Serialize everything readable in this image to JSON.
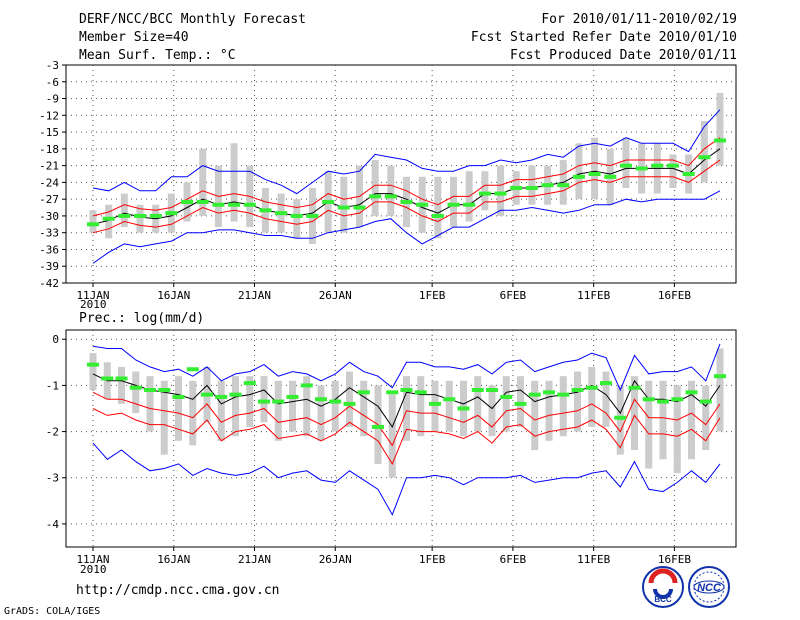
{
  "header": {
    "title": "DERF/NCC/BCC Monthly Forecast",
    "member_size": "Member Size=40",
    "variable": "Mean Surf. Temp.: °C",
    "forecast_period": "For 2010/01/11-2010/02/19",
    "started_refer": "Fcst Started Refer Date 2010/01/10",
    "produced": "Fcst Produced Date 2010/01/11"
  },
  "footer": {
    "url": "http://cmdp.ncc.cma.gov.cn",
    "grads": "GrADS: COLA/IGES",
    "logo_bcc_text": "BCC",
    "logo_ncc_text": "NCC"
  },
  "chart_data": [
    {
      "type": "line",
      "title": "Mean Surf. Temp.: °C",
      "x_ticks": [
        "11JAN",
        "16JAN",
        "21JAN",
        "26JAN",
        "1FEB",
        "6FEB",
        "11FEB",
        "16FEB"
      ],
      "x_tick_days": [
        0,
        5,
        10,
        15,
        21,
        26,
        31,
        36
      ],
      "x_year_label": "2010",
      "y_ticks": [
        -3,
        -6,
        -9,
        -12,
        -15,
        -18,
        -21,
        -24,
        -27,
        -30,
        -33,
        -36,
        -39,
        -42
      ],
      "ylim": [
        -42,
        -3
      ],
      "grid": true,
      "series": [
        {
          "name": "ensemble mean",
          "color": "#000000",
          "values": [
            -31.5,
            -30.8,
            -29.5,
            -30.2,
            -30.5,
            -30.0,
            -28.5,
            -27.0,
            -28.0,
            -27.5,
            -28.0,
            -29.0,
            -29.5,
            -30.0,
            -29.5,
            -27.5,
            -28.5,
            -28.0,
            -26.0,
            -26.0,
            -27.0,
            -28.5,
            -29.5,
            -28.0,
            -28.0,
            -26.0,
            -26.0,
            -25.0,
            -25.0,
            -24.5,
            -24.0,
            -22.5,
            -22.0,
            -22.5,
            -21.5,
            -21.5,
            -21.5,
            -21.5,
            -22.5,
            -20.0,
            -18.0
          ]
        },
        {
          "name": "upper spread",
          "color": "#ff0000",
          "values": [
            -30.0,
            -29.3,
            -28.0,
            -28.7,
            -29.0,
            -28.5,
            -27.0,
            -25.5,
            -26.5,
            -26.0,
            -26.5,
            -27.5,
            -28.0,
            -28.5,
            -28.0,
            -26.0,
            -27.0,
            -26.5,
            -24.5,
            -24.5,
            -25.5,
            -27.0,
            -28.0,
            -26.5,
            -26.5,
            -24.5,
            -24.5,
            -23.5,
            -23.5,
            -23.0,
            -22.5,
            -21.0,
            -20.5,
            -21.0,
            -20.0,
            -20.0,
            -20.0,
            -20.0,
            -21.0,
            -18.0,
            -16.0
          ]
        },
        {
          "name": "lower spread",
          "color": "#ff0000",
          "values": [
            -33.0,
            -32.3,
            -31.0,
            -31.7,
            -32.0,
            -31.5,
            -30.0,
            -28.5,
            -29.5,
            -29.0,
            -29.5,
            -30.5,
            -31.0,
            -31.5,
            -31.0,
            -29.0,
            -30.0,
            -29.5,
            -27.5,
            -27.5,
            -28.5,
            -30.0,
            -31.0,
            -29.5,
            -29.5,
            -27.5,
            -27.5,
            -26.5,
            -26.5,
            -26.0,
            -25.5,
            -24.0,
            -23.5,
            -24.0,
            -23.0,
            -23.0,
            -23.0,
            -23.0,
            -24.0,
            -22.0,
            -20.0
          ]
        },
        {
          "name": "ensemble max",
          "color": "#0000ff",
          "values": [
            -25.0,
            -25.5,
            -24.0,
            -25.5,
            -25.5,
            -23.0,
            -23.0,
            -21.0,
            -22.0,
            -22.0,
            -22.0,
            -23.5,
            -24.5,
            -26.0,
            -24.0,
            -22.0,
            -22.5,
            -22.0,
            -19.0,
            -19.5,
            -20.0,
            -21.5,
            -22.0,
            -22.0,
            -21.0,
            -21.0,
            -20.0,
            -20.5,
            -20.0,
            -19.0,
            -19.5,
            -17.5,
            -17.0,
            -17.5,
            -16.0,
            -17.0,
            -17.0,
            -17.0,
            -18.5,
            -14.0,
            -11.0
          ]
        },
        {
          "name": "ensemble min",
          "color": "#0000ff",
          "values": [
            -38.5,
            -36.5,
            -35.0,
            -35.5,
            -35.0,
            -34.5,
            -33.0,
            -33.0,
            -32.5,
            -32.5,
            -33.0,
            -33.5,
            -33.5,
            -34.0,
            -34.0,
            -33.0,
            -32.5,
            -32.0,
            -31.0,
            -30.5,
            -33.0,
            -35.0,
            -33.5,
            -32.0,
            -32.0,
            -30.5,
            -29.0,
            -29.0,
            -28.5,
            -29.0,
            -29.5,
            -29.0,
            -28.0,
            -28.0,
            -27.0,
            -27.5,
            -27.0,
            -27.0,
            -27.0,
            -27.0,
            -25.5
          ]
        },
        {
          "name": "observed / control",
          "color": "#33ee33",
          "values": [
            -31.5,
            -30.5,
            -30.0,
            -30.0,
            -30.0,
            -29.5,
            -27.5,
            -27.5,
            -28.0,
            -28.0,
            -28.0,
            -29.0,
            -29.5,
            -30.0,
            -30.0,
            -27.5,
            -28.5,
            -28.5,
            -26.5,
            -26.5,
            -27.5,
            -28.0,
            -30.0,
            -28.0,
            -28.0,
            -26.0,
            -26.0,
            -25.0,
            -25.0,
            -24.5,
            -24.5,
            -23.0,
            -22.5,
            -23.0,
            -21.0,
            -21.5,
            -21.0,
            -21.0,
            -22.5,
            -19.5,
            -16.5
          ]
        },
        {
          "name": "member range boxes",
          "color": "#cccccc",
          "ranges": [
            [
              -33,
              -29
            ],
            [
              -34,
              -28
            ],
            [
              -32,
              -26
            ],
            [
              -33,
              -28
            ],
            [
              -33,
              -28
            ],
            [
              -33,
              -26
            ],
            [
              -31,
              -24
            ],
            [
              -30,
              -18
            ],
            [
              -32,
              -21
            ],
            [
              -31,
              -17
            ],
            [
              -32,
              -21
            ],
            [
              -33,
              -25
            ],
            [
              -33,
              -26
            ],
            [
              -34,
              -27
            ],
            [
              -35,
              -25
            ],
            [
              -33,
              -22
            ],
            [
              -33,
              -23
            ],
            [
              -32,
              -21
            ],
            [
              -30,
              -20
            ],
            [
              -30,
              -21
            ],
            [
              -32,
              -23
            ],
            [
              -33,
              -23
            ],
            [
              -34,
              -23
            ],
            [
              -32,
              -23
            ],
            [
              -31,
              -22
            ],
            [
              -29,
              -22
            ],
            [
              -30,
              -21
            ],
            [
              -28,
              -22
            ],
            [
              -28,
              -21
            ],
            [
              -28,
              -21
            ],
            [
              -28,
              -20
            ],
            [
              -27,
              -17
            ],
            [
              -27,
              -16
            ],
            [
              -28,
              -18
            ],
            [
              -25,
              -16
            ],
            [
              -26,
              -17
            ],
            [
              -26,
              -17
            ],
            [
              -25,
              -19
            ],
            [
              -26,
              -19
            ],
            [
              -24,
              -13
            ],
            [
              -21,
              -8
            ]
          ]
        }
      ]
    },
    {
      "type": "line",
      "title": "Prec.: log(mm/d)",
      "x_ticks": [
        "11JAN",
        "16JAN",
        "21JAN",
        "26JAN",
        "1FEB",
        "6FEB",
        "11FEB",
        "16FEB"
      ],
      "x_tick_days": [
        0,
        5,
        10,
        15,
        21,
        26,
        31,
        36
      ],
      "x_year_label": "2010",
      "y_ticks": [
        0,
        -1,
        -2,
        -3,
        -4
      ],
      "ylim": [
        -4.5,
        0.2
      ],
      "grid": true,
      "series": [
        {
          "name": "ensemble mean",
          "color": "#000000",
          "values": [
            -0.75,
            -0.9,
            -0.9,
            -1.0,
            -1.1,
            -1.15,
            -1.2,
            -1.3,
            -1.0,
            -1.4,
            -1.25,
            -1.2,
            -1.1,
            -1.4,
            -1.35,
            -1.3,
            -1.45,
            -1.3,
            -1.05,
            -1.25,
            -1.45,
            -1.9,
            -1.15,
            -1.2,
            -1.2,
            -1.3,
            -1.4,
            -1.25,
            -1.5,
            -1.15,
            -1.1,
            -1.35,
            -1.25,
            -1.2,
            -1.15,
            -1.0,
            -1.2,
            -1.6,
            -0.9,
            -1.3,
            -1.3,
            -1.35,
            -1.2,
            -1.45,
            -1.0
          ]
        },
        {
          "name": "upper spread",
          "color": "#ff0000",
          "values": [
            -1.15,
            -1.3,
            -1.3,
            -1.4,
            -1.5,
            -1.55,
            -1.6,
            -1.7,
            -1.4,
            -1.8,
            -1.65,
            -1.6,
            -1.5,
            -1.8,
            -1.75,
            -1.7,
            -1.85,
            -1.7,
            -1.45,
            -1.65,
            -1.85,
            -2.3,
            -1.55,
            -1.6,
            -1.6,
            -1.7,
            -1.8,
            -1.65,
            -1.9,
            -1.55,
            -1.5,
            -1.75,
            -1.65,
            -1.6,
            -1.55,
            -1.4,
            -1.6,
            -2.0,
            -1.3,
            -1.7,
            -1.7,
            -1.75,
            -1.6,
            -1.85,
            -1.4
          ]
        },
        {
          "name": "lower spread",
          "color": "#ff0000",
          "values": [
            -1.5,
            -1.65,
            -1.6,
            -1.75,
            -1.85,
            -1.85,
            -1.95,
            -2.05,
            -1.75,
            -2.2,
            -2.0,
            -1.95,
            -1.85,
            -2.15,
            -2.1,
            -2.05,
            -2.2,
            -2.05,
            -1.8,
            -2.0,
            -2.2,
            -2.7,
            -1.95,
            -2.0,
            -2.0,
            -2.05,
            -2.15,
            -2.0,
            -2.25,
            -1.9,
            -1.85,
            -2.1,
            -2.0,
            -1.95,
            -1.9,
            -1.75,
            -1.95,
            -2.35,
            -1.65,
            -2.05,
            -2.05,
            -2.1,
            -1.95,
            -2.2,
            -1.7
          ]
        },
        {
          "name": "ensemble max",
          "color": "#0000ff",
          "values": [
            -0.15,
            -0.2,
            -0.2,
            -0.45,
            -0.6,
            -0.7,
            -0.65,
            -0.8,
            -0.6,
            -0.9,
            -0.75,
            -0.7,
            -0.55,
            -0.8,
            -0.7,
            -0.75,
            -0.9,
            -0.75,
            -0.5,
            -0.7,
            -0.8,
            -1.05,
            -0.5,
            -0.5,
            -0.6,
            -0.6,
            -0.65,
            -0.55,
            -0.75,
            -0.5,
            -0.45,
            -0.7,
            -0.6,
            -0.5,
            -0.45,
            -0.3,
            -0.4,
            -1.1,
            -0.35,
            -0.75,
            -0.7,
            -0.7,
            -0.6,
            -0.9,
            -0.1
          ]
        },
        {
          "name": "ensemble min",
          "color": "#0000ff",
          "values": [
            -2.25,
            -2.6,
            -2.4,
            -2.65,
            -2.85,
            -2.8,
            -2.7,
            -2.95,
            -2.8,
            -2.9,
            -2.95,
            -2.9,
            -2.75,
            -3.0,
            -2.9,
            -2.85,
            -3.05,
            -3.1,
            -2.85,
            -3.05,
            -3.25,
            -3.8,
            -3.0,
            -3.0,
            -2.95,
            -3.0,
            -3.15,
            -3.0,
            -3.0,
            -3.0,
            -2.95,
            -3.1,
            -3.05,
            -3.0,
            -3.0,
            -2.9,
            -2.85,
            -3.2,
            -2.65,
            -3.25,
            -3.3,
            -3.1,
            -2.85,
            -3.1,
            -2.7
          ]
        },
        {
          "name": "observed / control",
          "color": "#33ee33",
          "values": [
            -0.55,
            -0.85,
            -0.85,
            -1.05,
            -1.1,
            -1.1,
            -1.25,
            -0.65,
            -1.2,
            -1.25,
            -1.2,
            -0.95,
            -1.35,
            -1.35,
            -1.25,
            -1.0,
            -1.3,
            -1.35,
            -1.4,
            -1.15,
            -1.9,
            -1.15,
            -1.1,
            -1.15,
            -1.4,
            -1.3,
            -1.5,
            -1.1,
            -1.1,
            -1.25,
            -1.4,
            -1.2,
            -1.15,
            -1.2,
            -1.1,
            -1.05,
            -0.95,
            -1.7,
            -1.05,
            -1.3,
            -1.35,
            -1.3,
            -1.15,
            -1.35,
            -0.8
          ]
        },
        {
          "name": "member range boxes",
          "color": "#cccccc",
          "ranges": [
            [
              -1.1,
              -0.3
            ],
            [
              -1.3,
              -0.5
            ],
            [
              -1.4,
              -0.6
            ],
            [
              -1.6,
              -0.7
            ],
            [
              -2.0,
              -0.8
            ],
            [
              -2.5,
              -0.9
            ],
            [
              -2.2,
              -0.8
            ],
            [
              -2.3,
              -0.9
            ],
            [
              -1.8,
              -0.6
            ],
            [
              -2.2,
              -0.9
            ],
            [
              -2.1,
              -0.8
            ],
            [
              -1.9,
              -0.8
            ],
            [
              -1.8,
              -0.8
            ],
            [
              -2.2,
              -0.9
            ],
            [
              -2.0,
              -0.9
            ],
            [
              -2.1,
              -0.8
            ],
            [
              -2.2,
              -1.0
            ],
            [
              -2.0,
              -0.9
            ],
            [
              -1.9,
              -0.7
            ],
            [
              -2.1,
              -0.9
            ],
            [
              -2.7,
              -1.0
            ],
            [
              -3.0,
              -1.2
            ],
            [
              -2.2,
              -0.8
            ],
            [
              -2.1,
              -0.8
            ],
            [
              -2.0,
              -0.9
            ],
            [
              -2.0,
              -0.9
            ],
            [
              -2.1,
              -0.9
            ],
            [
              -2.0,
              -0.8
            ],
            [
              -2.1,
              -1.0
            ],
            [
              -2.0,
              -0.8
            ],
            [
              -1.9,
              -0.8
            ],
            [
              -2.4,
              -0.9
            ],
            [
              -2.2,
              -0.9
            ],
            [
              -2.1,
              -0.8
            ],
            [
              -2.0,
              -0.7
            ],
            [
              -1.9,
              -0.6
            ],
            [
              -1.9,
              -0.7
            ],
            [
              -2.5,
              -1.0
            ],
            [
              -2.4,
              -0.8
            ],
            [
              -2.8,
              -0.9
            ],
            [
              -2.6,
              -0.9
            ],
            [
              -2.9,
              -1.0
            ],
            [
              -2.6,
              -0.9
            ],
            [
              -2.4,
              -1.0
            ],
            [
              -2.0,
              -0.2
            ]
          ]
        }
      ]
    }
  ]
}
